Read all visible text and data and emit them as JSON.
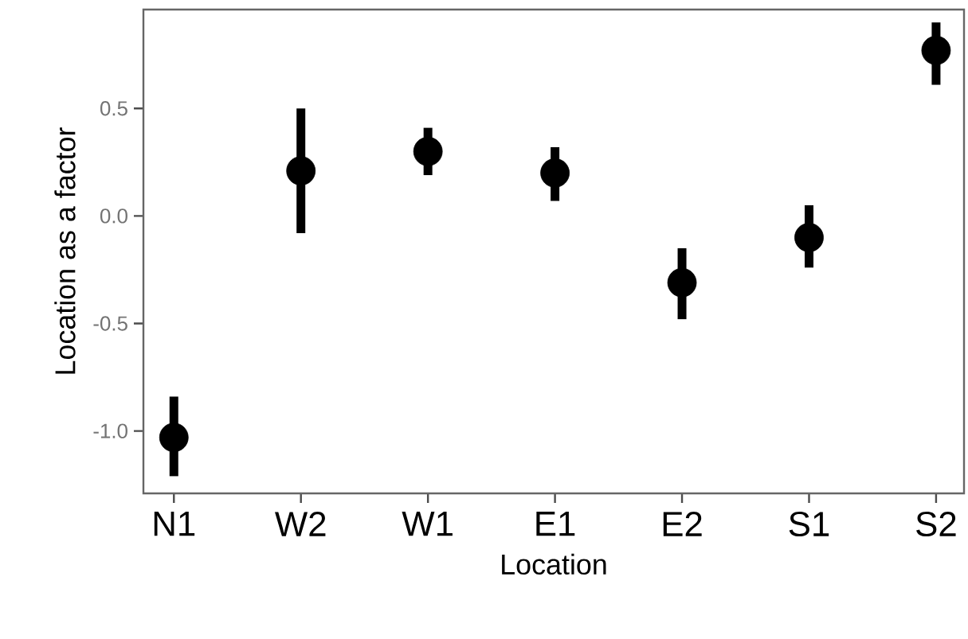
{
  "chart_data": {
    "type": "scatter",
    "xlabel": "Location",
    "ylabel": "Location as a factor",
    "categories": [
      "N1",
      "W2",
      "W1",
      "E1",
      "E2",
      "S1",
      "S2"
    ],
    "values": [
      -1.03,
      0.21,
      0.3,
      0.2,
      -0.31,
      -0.1,
      0.77
    ],
    "errors": [
      [
        -1.21,
        -0.84
      ],
      [
        -0.08,
        0.5
      ],
      [
        0.19,
        0.41
      ],
      [
        0.07,
        0.32
      ],
      [
        -0.48,
        -0.15
      ],
      [
        -0.24,
        0.05
      ],
      [
        0.61,
        0.9
      ]
    ],
    "color": "#000000",
    "marker": "circle",
    "ylim": [
      -1.29,
      0.96
    ],
    "yticks": [
      {
        "value": -1.0,
        "label": "-1.0"
      },
      {
        "value": -0.5,
        "label": "-0.5"
      },
      {
        "value": 0.0,
        "label": "0.0"
      },
      {
        "value": 0.5,
        "label": "0.5"
      }
    ]
  }
}
